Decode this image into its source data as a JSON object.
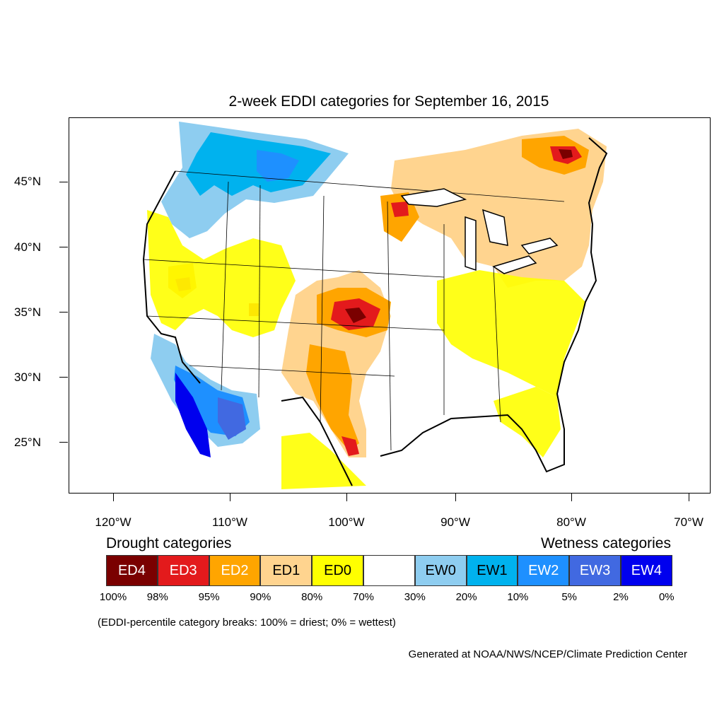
{
  "title": "2-week EDDI categories for September 16, 2015",
  "latitude_labels": [
    "45°N",
    "40°N",
    "35°N",
    "30°N",
    "25°N"
  ],
  "longitude_labels": [
    "120°W",
    "110°W",
    "100°W",
    "90°W",
    "80°W",
    "70°W"
  ],
  "legend": {
    "drought_heading": "Drought categories",
    "wetness_heading": "Wetness categories",
    "categories": [
      {
        "label": "ED4",
        "color": "#7a0000",
        "text_color": "#ffffff"
      },
      {
        "label": "ED3",
        "color": "#e31a1c",
        "text_color": "#ffffff"
      },
      {
        "label": "ED2",
        "color": "#ffa500",
        "text_color": "#ffffff"
      },
      {
        "label": "ED1",
        "color": "#ffd48f",
        "text_color": "#000000"
      },
      {
        "label": "ED0",
        "color": "#ffff00",
        "text_color": "#000000"
      },
      {
        "label": "",
        "color": "#ffffff",
        "text_color": "#000000"
      },
      {
        "label": "EW0",
        "color": "#8ecdf0",
        "text_color": "#000000"
      },
      {
        "label": "EW1",
        "color": "#00b2ee",
        "text_color": "#000000"
      },
      {
        "label": "EW2",
        "color": "#1e90ff",
        "text_color": "#ffffff"
      },
      {
        "label": "EW3",
        "color": "#4169e1",
        "text_color": "#ffffff"
      },
      {
        "label": "EW4",
        "color": "#0000ee",
        "text_color": "#ffffff"
      }
    ],
    "breaks": [
      "100%",
      "98%",
      "95%",
      "90%",
      "80%",
      "70%",
      "30%",
      "20%",
      "10%",
      "5%",
      "2%",
      "0%"
    ]
  },
  "note": "(EDDI-percentile category breaks: 100% = driest; 0% = wettest)",
  "credit": "Generated at NOAA/NWS/NCEP/Climate Prediction Center"
}
